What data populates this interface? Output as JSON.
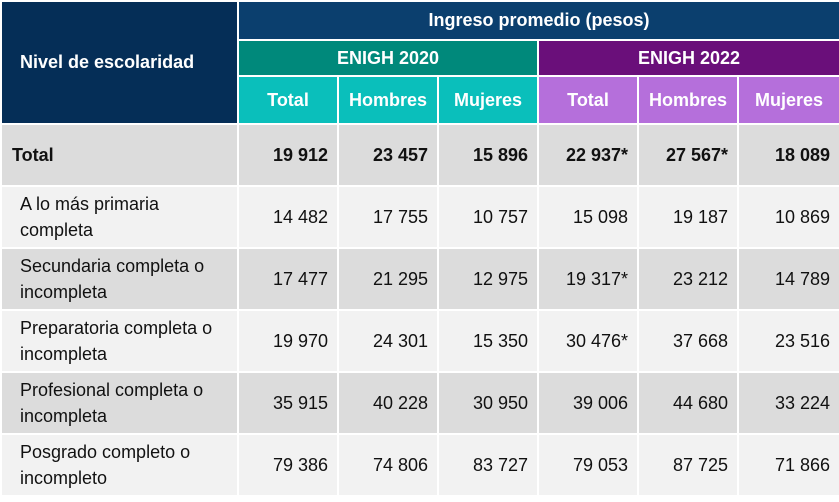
{
  "header": {
    "row_label": "Nivel de escolaridad",
    "group_title": "Ingreso promedio (pesos)",
    "survey_2020": "ENIGH 2020",
    "survey_2022": "ENIGH 2022",
    "subcolumns": [
      "Total",
      "Hombres",
      "Mujeres",
      "Total",
      "Hombres",
      "Mujeres"
    ]
  },
  "colors": {
    "navy": "#052e57",
    "enigh_2020": "#00897b",
    "enigh_2020_sub": "#0abfbb",
    "enigh_2022": "#6a0f7a",
    "enigh_2022_sub": "#b56fdb"
  },
  "rows": [
    {
      "label": "Total",
      "values": [
        "19 912",
        "23 457",
        "15 896",
        "22 937*",
        "27 567*",
        "18 089"
      ]
    },
    {
      "label": "A lo más primaria completa",
      "values": [
        "14 482",
        "17 755",
        "10 757",
        "15 098",
        "19 187",
        "10 869"
      ]
    },
    {
      "label": "Secundaria completa o incompleta",
      "values": [
        "17 477",
        "21 295",
        "12 975",
        "19 317*",
        "23 212",
        "14 789"
      ]
    },
    {
      "label": "Preparatoria completa o incompleta",
      "values": [
        "19 970",
        "24 301",
        "15 350",
        "30 476*",
        "37 668",
        "23 516"
      ]
    },
    {
      "label": "Profesional completa o incompleta",
      "values": [
        "35 915",
        "40 228",
        "30 950",
        "39 006",
        "44 680",
        "33 224"
      ]
    },
    {
      "label": "Posgrado completo o incompleto",
      "values": [
        "79 386",
        "74 806",
        "83 727",
        "79 053",
        "87 725",
        "71 866"
      ]
    }
  ]
}
